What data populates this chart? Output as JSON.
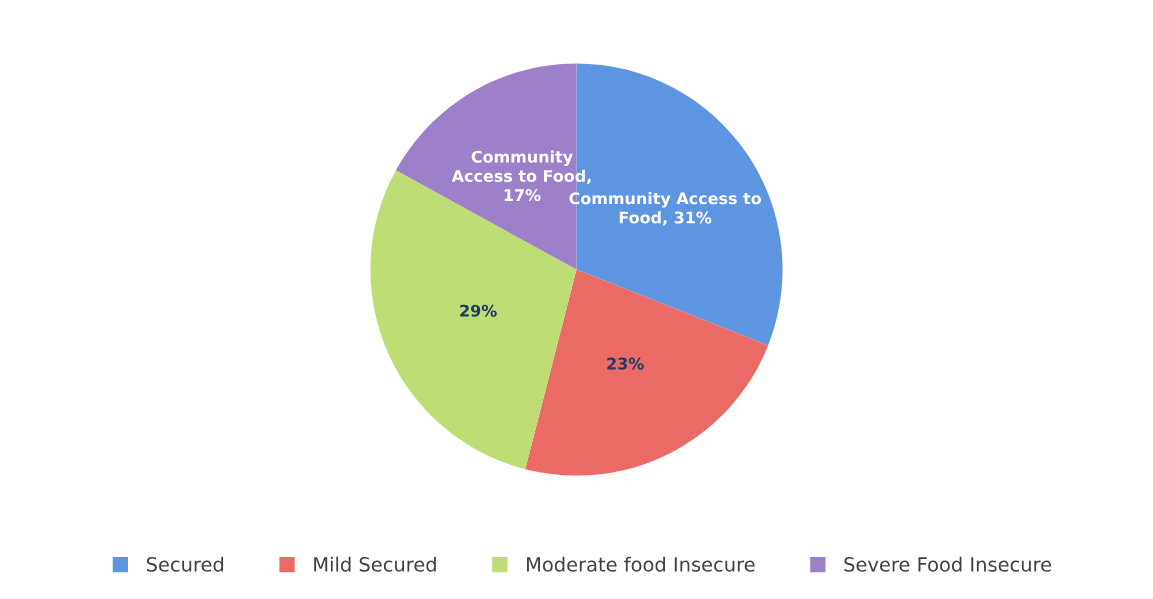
{
  "chart_data": {
    "type": "pie",
    "categories": [
      "Secured",
      "Mild Secured",
      "Moderate food Insecure",
      "Severe Food Insecure"
    ],
    "values": [
      31,
      23,
      29,
      17
    ],
    "colors": [
      "#5e95e0",
      "#ea6a66",
      "#bede75",
      "#9c80c9"
    ],
    "value_labels": [
      "Community Access to Food, 31%",
      "23%",
      "29%",
      "Community Access to Food, 17%"
    ],
    "legend": "bottom"
  }
}
